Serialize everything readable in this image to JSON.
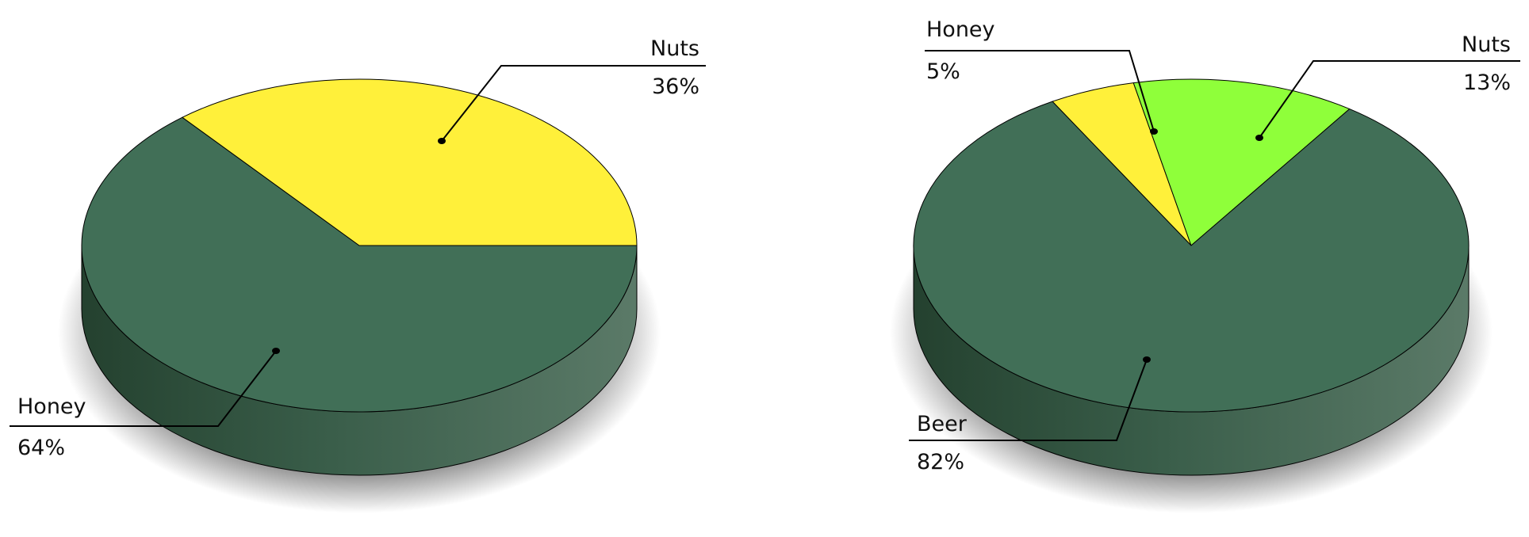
{
  "chart_data": [
    {
      "type": "pie",
      "style": "3d",
      "title": "",
      "slices": [
        {
          "label": "Honey",
          "value": 64,
          "display": "64%",
          "color": "#416f57"
        },
        {
          "label": "Nuts",
          "value": 36,
          "display": "36%",
          "color": "#fff03a"
        }
      ],
      "legend": "none"
    },
    {
      "type": "pie",
      "style": "3d",
      "title": "",
      "slices": [
        {
          "label": "Honey",
          "value": 5,
          "display": "5%",
          "color": "#fff03a"
        },
        {
          "label": "Nuts",
          "value": 13,
          "display": "13%",
          "color": "#8fff3a"
        },
        {
          "label": "Beer",
          "value": 82,
          "display": "82%",
          "color": "#416f57"
        }
      ],
      "legend": "none"
    }
  ]
}
